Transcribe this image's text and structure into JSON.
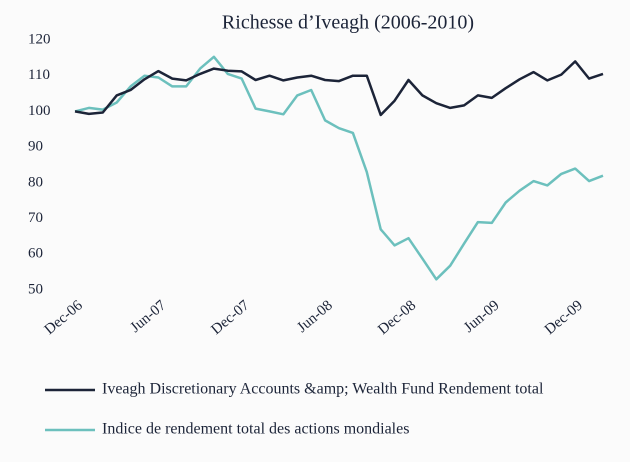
{
  "chart_data": {
    "type": "line",
    "title": "Richesse d’Iveagh (2006-2010)",
    "categories": [
      "Dec-06",
      null,
      null,
      null,
      null,
      null,
      "Jun-07",
      null,
      null,
      null,
      null,
      null,
      "Dec-07",
      null,
      null,
      null,
      null,
      null,
      "Jun-08",
      null,
      null,
      null,
      null,
      null,
      "Dec-08",
      null,
      null,
      null,
      null,
      null,
      "Jun-09",
      null,
      null,
      null,
      null,
      null,
      "Dec-09",
      null,
      null
    ],
    "series": [
      {
        "name": "Iveagh Discretionary Accounts &amp; Wealth Fund Rendement total",
        "color": "#1c2438",
        "values": [
          100,
          99.3,
          99.7,
          104.5,
          106,
          109,
          111.3,
          109.2,
          108.7,
          110.5,
          112,
          111.4,
          111.2,
          108.8,
          110,
          108.7,
          109.5,
          110,
          108.8,
          108.5,
          110,
          110,
          99,
          103,
          108.8,
          104.5,
          102.3,
          101,
          101.7,
          104.5,
          103.8,
          106.5,
          109,
          111,
          108.7,
          110.3,
          114,
          109.2,
          110.5
        ]
      },
      {
        "name": "Indice de rendement total des actions mondiales",
        "color": "#6cc0bd",
        "values": [
          100,
          101,
          100.5,
          102.5,
          107,
          110,
          109.5,
          107,
          107,
          112,
          115.3,
          110.5,
          109.2,
          100.8,
          100,
          99.2,
          104.5,
          106,
          97.5,
          95.3,
          94,
          83,
          67,
          62.5,
          64.5,
          58.8,
          53,
          56.8,
          63,
          69,
          68.8,
          74.5,
          77.8,
          80.5,
          79.3,
          82.5,
          84,
          80.5,
          82
        ]
      }
    ],
    "ylim": [
      50,
      120
    ],
    "yticks": [
      50,
      60,
      70,
      80,
      90,
      100,
      110,
      120
    ],
    "grid": false,
    "legend": "bottom"
  }
}
